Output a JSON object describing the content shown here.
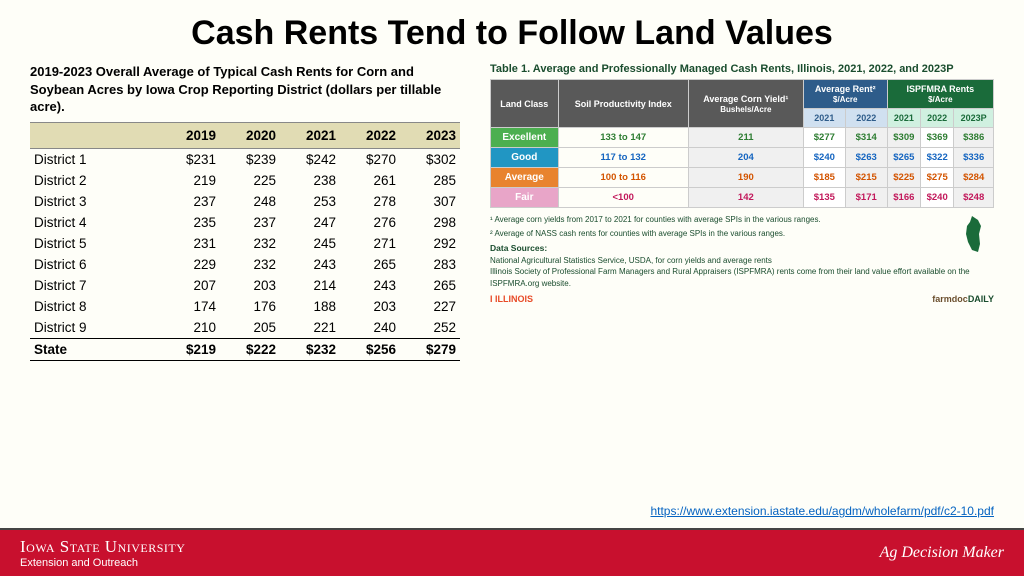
{
  "title": "Cash Rents Tend to Follow Land Values",
  "iowa": {
    "caption": "2019-2023 Overall Average of Typical Cash Rents for Corn and Soybean Acres by Iowa Crop Reporting District (dollars per tillable acre).",
    "years": [
      "2019",
      "2020",
      "2021",
      "2022",
      "2023"
    ],
    "rows": [
      {
        "label": "District 1",
        "v": [
          "$231",
          "$239",
          "$242",
          "$270",
          "$302"
        ]
      },
      {
        "label": "District 2",
        "v": [
          "219",
          "225",
          "238",
          "261",
          "285"
        ]
      },
      {
        "label": "District 3",
        "v": [
          "237",
          "248",
          "253",
          "278",
          "307"
        ]
      },
      {
        "label": "District 4",
        "v": [
          "235",
          "237",
          "247",
          "276",
          "298"
        ]
      },
      {
        "label": "District 5",
        "v": [
          "231",
          "232",
          "245",
          "271",
          "292"
        ]
      },
      {
        "label": "District 6",
        "v": [
          "229",
          "232",
          "243",
          "265",
          "283"
        ]
      },
      {
        "label": "District 7",
        "v": [
          "207",
          "203",
          "214",
          "243",
          "265"
        ]
      },
      {
        "label": "District 8",
        "v": [
          "174",
          "176",
          "188",
          "203",
          "227"
        ]
      },
      {
        "label": "District 9",
        "v": [
          "210",
          "205",
          "221",
          "240",
          "252"
        ]
      }
    ],
    "state_row": {
      "label": "State",
      "v": [
        "$219",
        "$222",
        "$232",
        "$256",
        "$279"
      ]
    },
    "header_bg": "#e1dcb4"
  },
  "illinois": {
    "caption": "Table 1. Average and Professionally Managed Cash Rents, Illinois, 2021, 2022, and 2023P",
    "headers": {
      "land_class": "Land Class",
      "spi": "Soil Productivity Index",
      "yield": "Average Corn Yield¹",
      "yield_sub": "Bushels/Acre",
      "avgrent": "Average Rent²",
      "avgrent_sub": "$/Acre",
      "ispfmra": "ISPFMRA Rents",
      "ispfmra_sub": "$/Acre",
      "y2021": "2021",
      "y2022": "2022",
      "y2023p": "2023P"
    },
    "header_colors": {
      "grey": "#595959",
      "blue": "#2e5c8a",
      "green": "#1a6b3a"
    },
    "classes": [
      {
        "name": "Excellent",
        "color": "#4caf50",
        "txt": "#2e7d32",
        "spi": "133 to 147",
        "yield": "211",
        "ar": [
          "$277",
          "$314"
        ],
        "ir": [
          "$309",
          "$369",
          "$386"
        ]
      },
      {
        "name": "Good",
        "color": "#2196c3",
        "txt": "#1565c0",
        "spi": "117 to 132",
        "yield": "204",
        "ar": [
          "$240",
          "$263"
        ],
        "ir": [
          "$265",
          "$322",
          "$336"
        ]
      },
      {
        "name": "Average",
        "color": "#e8832e",
        "txt": "#d35400",
        "spi": "100 to 116",
        "yield": "190",
        "ar": [
          "$185",
          "$215"
        ],
        "ir": [
          "$225",
          "$275",
          "$284"
        ]
      },
      {
        "name": "Fair",
        "color": "#e8a5c8",
        "txt": "#c2185b",
        "spi": "<100",
        "yield": "142",
        "ar": [
          "$135",
          "$171"
        ],
        "ir": [
          "$166",
          "$240",
          "$248"
        ]
      }
    ],
    "notes": {
      "n1": "¹ Average corn yields from 2017 to 2021 for counties with average SPIs in the various ranges.",
      "n2": "² Average of NASS cash rents for counties with average SPIs in the various ranges.",
      "ds_label": "Data Sources:",
      "ds1": "National Agricultural Statistics Service, USDA, for corn yields and average rents",
      "ds2": "Illinois Society of Professional Farm Managers and Rural Appraisers (ISPFMRA) rents come from their land value effort available on the ISPFMRA.org website."
    },
    "brands": {
      "illinois": "I ILLINOIS",
      "farmdoc1": "farmdoc",
      "farmdoc2": "DAILY"
    }
  },
  "url": "https://www.extension.iastate.edu/agdm/wholefarm/pdf/c2-10.pdf",
  "footer": {
    "university": "Iowa State University",
    "extension": "Extension and Outreach",
    "right": "Ag Decision Maker",
    "bg": "#c8102e"
  }
}
